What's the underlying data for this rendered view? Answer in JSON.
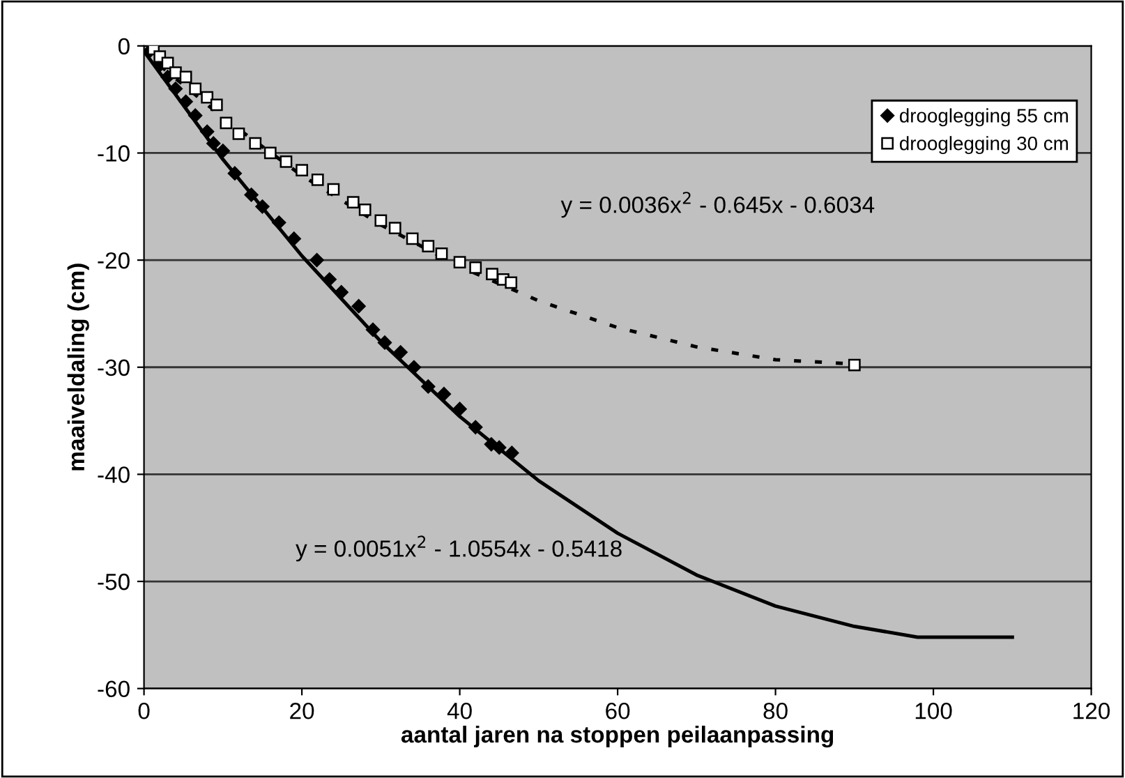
{
  "chart_data": {
    "type": "scatter",
    "xlabel": "aantal jaren na stoppen peilaanpassing",
    "ylabel": "maaiveldaling (cm)",
    "xlim": [
      0,
      120
    ],
    "xticks": [
      0,
      20,
      40,
      60,
      80,
      100,
      120
    ],
    "ylim": [
      -60,
      0
    ],
    "yticks": [
      -60,
      -50,
      -40,
      -30,
      -20,
      -10,
      0
    ],
    "grid": "y",
    "legend": "top right",
    "annotations": [
      "y = 0.0036x$^{2}$ - 0.645x - 0.6034",
      "y = 0.0051x$^{2}$ - 1.0554x - 0.5418"
    ],
    "series": [
      {
        "name": "drooglegging 55 cm",
        "marker": "diamond",
        "color": "#000000",
        "x": [
          0.7,
          2,
          3,
          4,
          5.3,
          6.5,
          8,
          8.8,
          10,
          11.5,
          13.6,
          15,
          17.1,
          19,
          21.9,
          23.5,
          25,
          27.2,
          29,
          30.5,
          32.5,
          34.2,
          36,
          38,
          40,
          42,
          44,
          45,
          46.6
        ],
        "values": [
          -0.5,
          -1.8,
          -2.9,
          -4,
          -5.2,
          -6.5,
          -8,
          -9.1,
          -9.8,
          -11.9,
          -13.9,
          -15,
          -16.5,
          -18,
          -20,
          -21.8,
          -23,
          -24.3,
          -26.5,
          -27.7,
          -28.6,
          -30,
          -31.8,
          -32.5,
          -33.9,
          -35.6,
          -37.2,
          -37.5,
          -38
        ]
      },
      {
        "name": "drooglegging 30 cm",
        "marker": "square",
        "color": "#000000",
        "x": [
          1.2,
          2,
          3,
          4,
          5.3,
          6.5,
          8,
          9.2,
          10.4,
          12,
          14.1,
          16,
          18,
          20,
          22,
          24,
          26.5,
          28,
          30,
          31.8,
          34,
          36,
          37.7,
          40,
          42,
          44.1,
          45.5,
          46.5,
          90
        ],
        "values": [
          -0.3,
          -1,
          -1.6,
          -2.5,
          -2.9,
          -4,
          -4.8,
          -5.5,
          -7.2,
          -8.2,
          -9.1,
          -10,
          -10.8,
          -11.6,
          -12.5,
          -13.4,
          -14.6,
          -15.3,
          -16.3,
          -17,
          -18,
          -18.7,
          -19.4,
          -20.2,
          -20.7,
          -21.3,
          -21.8,
          -22.1,
          -29.8
        ]
      },
      {
        "type": "line",
        "line_style": "solid",
        "marker": "none",
        "color": "#000000",
        "x": [
          0,
          10,
          20,
          30,
          40,
          50,
          60,
          70,
          80,
          90,
          98,
          110
        ],
        "values": [
          -0.5,
          -10.6,
          -19.6,
          -27.6,
          -34.6,
          -40.6,
          -45.5,
          -49.4,
          -52.3,
          -54.2,
          -55.2,
          -55.2
        ]
      },
      {
        "type": "line",
        "line_style": "dashed",
        "marker": "none",
        "color": "#000000",
        "x": [
          0,
          10,
          20,
          30,
          40,
          50,
          60,
          70,
          80,
          90
        ],
        "values": [
          -0.6,
          -6.7,
          -12.1,
          -16.7,
          -20.6,
          -23.8,
          -26.3,
          -28.1,
          -29.3,
          -29.7
        ]
      }
    ]
  }
}
